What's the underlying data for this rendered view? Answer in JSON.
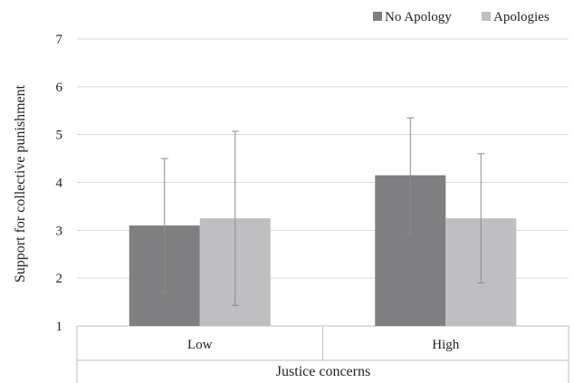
{
  "chart_data": {
    "type": "bar",
    "xlabel": "Justice concerns",
    "ylabel": "Support for collective punishment",
    "ylim": [
      1,
      7
    ],
    "yticks": [
      1,
      2,
      3,
      4,
      5,
      6,
      7
    ],
    "categories": [
      "Low",
      "High"
    ],
    "grid": true,
    "legend_position": "top-right",
    "series": [
      {
        "name": "No Apology",
        "color": "#7f7f81",
        "values": [
          3.1,
          4.15
        ],
        "error_low": [
          1.7,
          2.93
        ],
        "error_high": [
          4.5,
          5.35
        ]
      },
      {
        "name": "Apologies",
        "color": "#bfbfc1",
        "values": [
          3.25,
          3.25
        ],
        "error_low": [
          1.43,
          1.9
        ],
        "error_high": [
          5.07,
          4.6
        ]
      }
    ]
  }
}
